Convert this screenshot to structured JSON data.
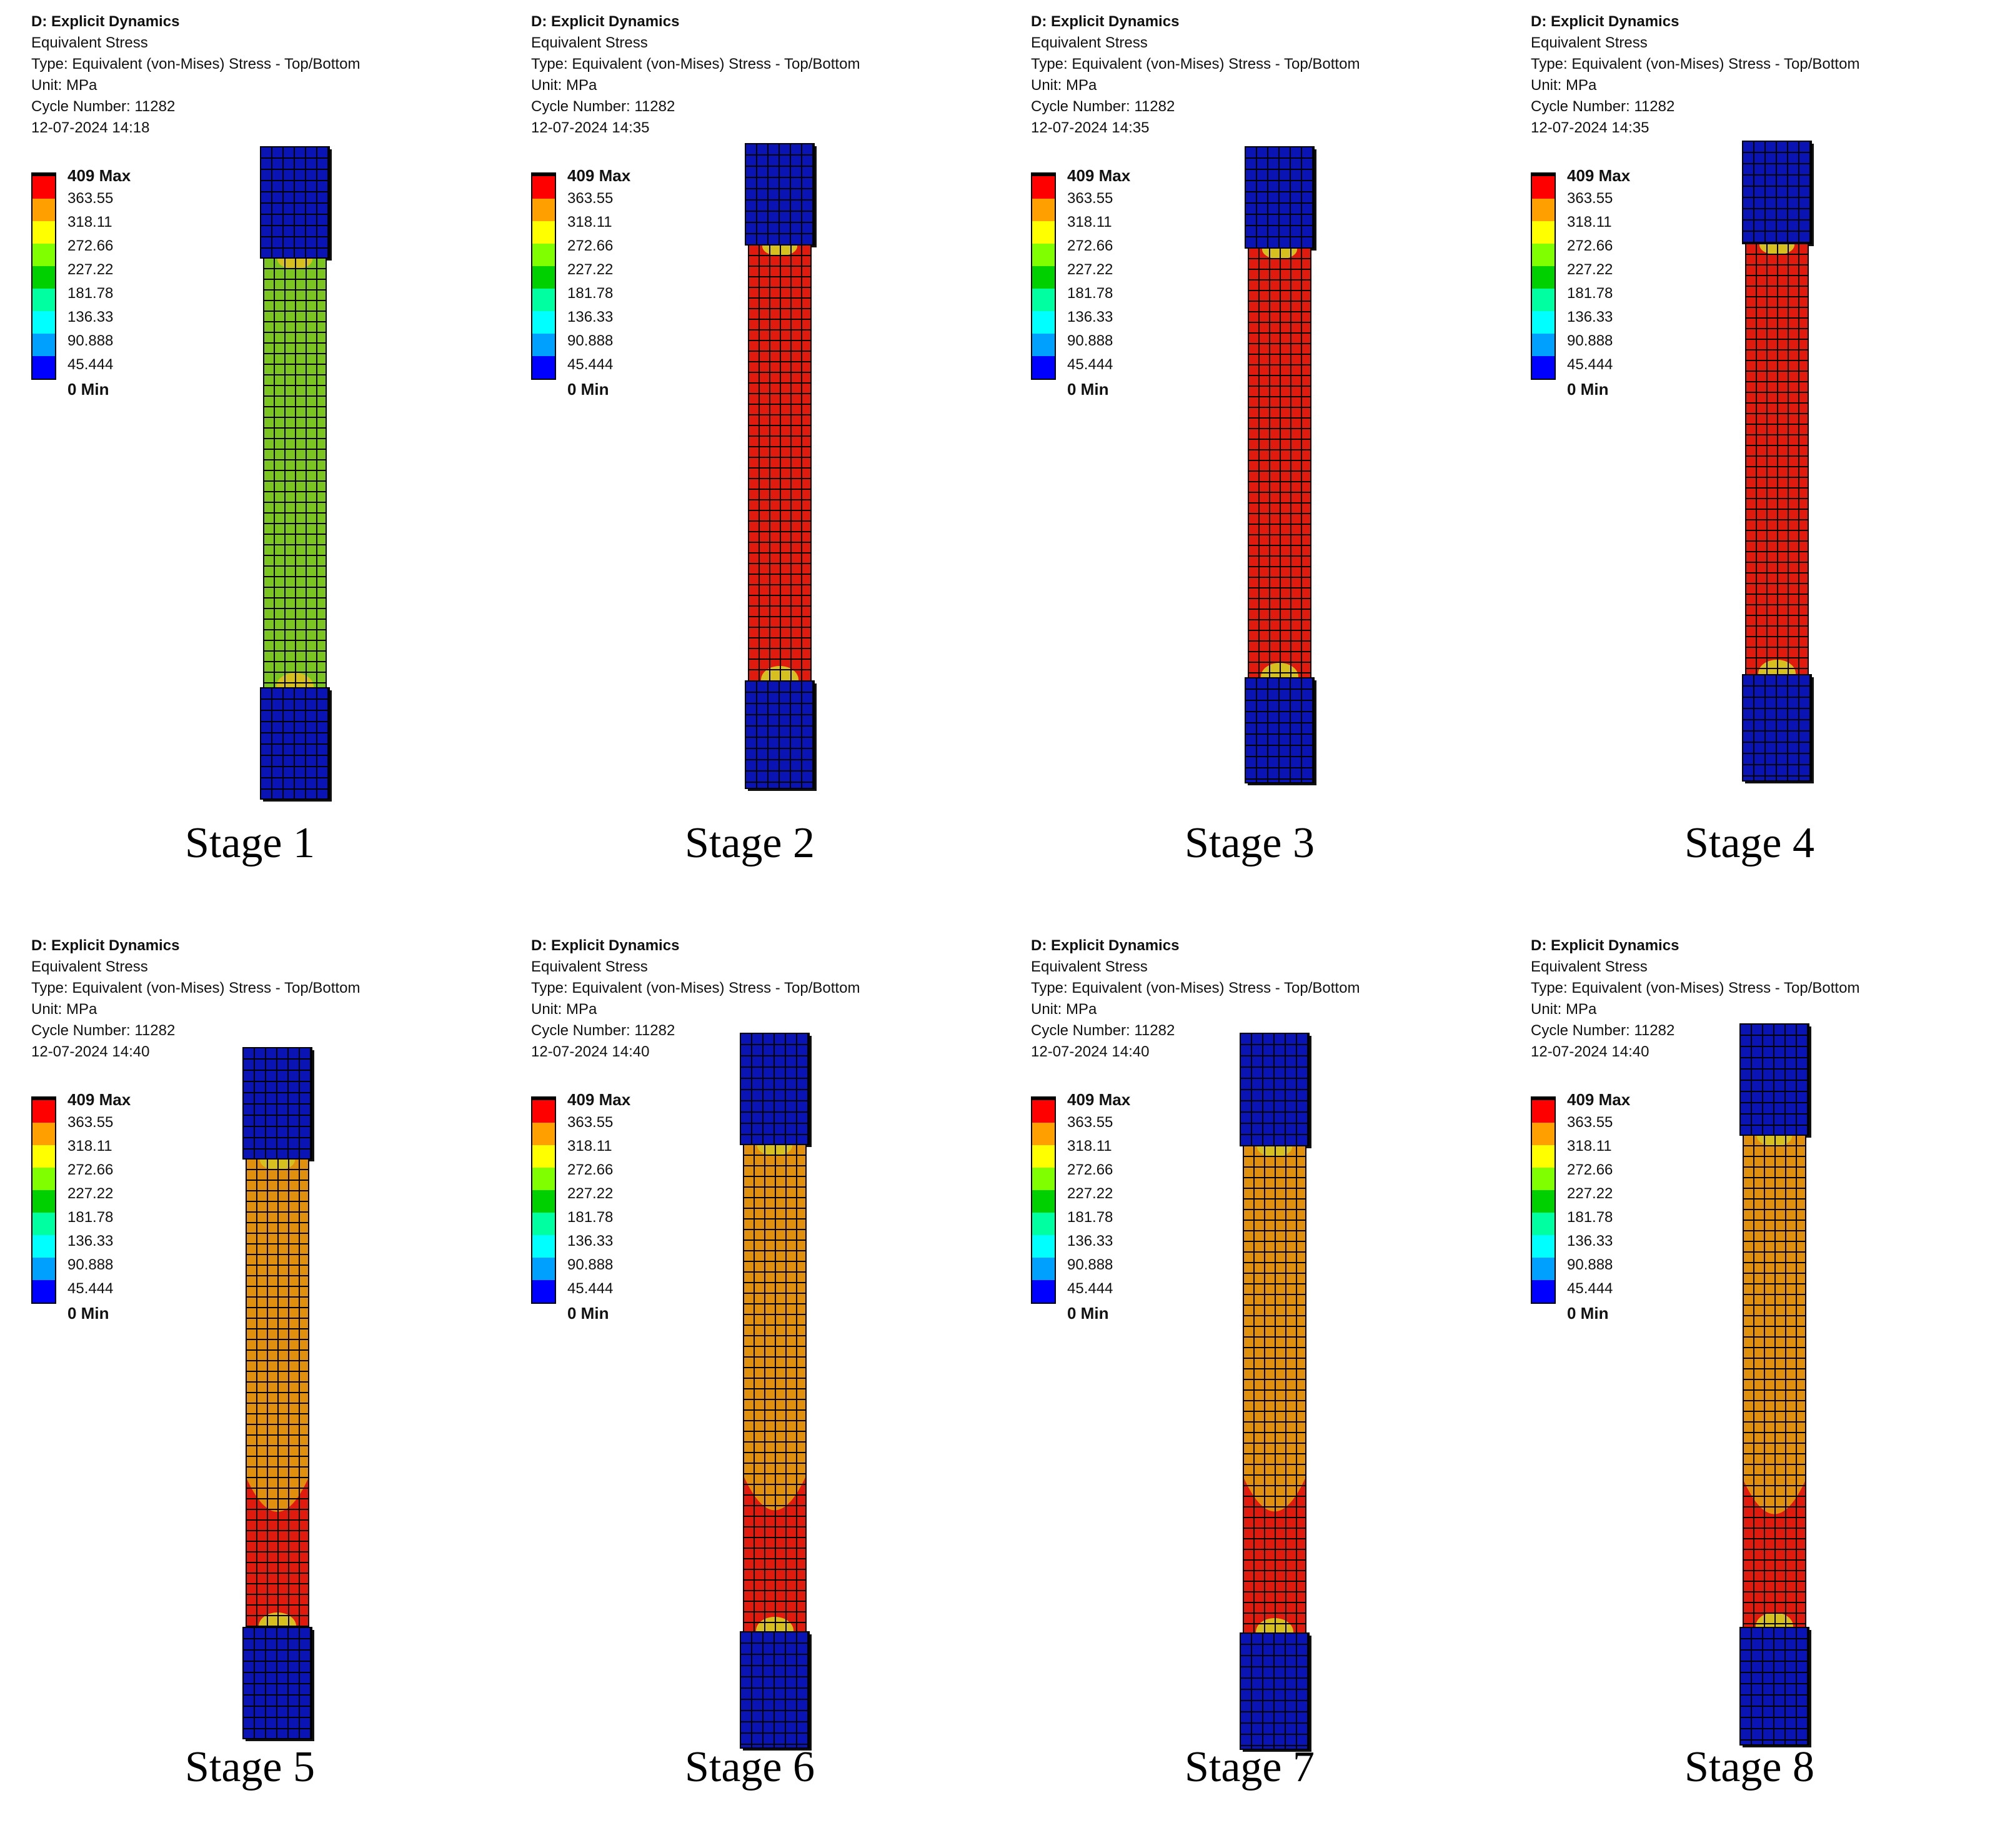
{
  "colors": {
    "legend": [
      "#ff0000",
      "#ffa000",
      "#ffff00",
      "#80ff00",
      "#00d000",
      "#00ffa0",
      "#00ffff",
      "#00a0ff",
      "#0000ff"
    ],
    "grip": "#0a14b4",
    "zone": {
      "green": "#7ac520",
      "red": "#e01b0e",
      "orange": "#e0900c",
      "yellow": "#d6c020"
    }
  },
  "legend_labels": [
    "409 Max",
    "363.55",
    "318.11",
    "272.66",
    "227.22",
    "181.78",
    "136.33",
    "90.888",
    "45.444",
    "0 Min"
  ],
  "stages": [
    {
      "title": "D: Explicit Dynamics",
      "result": "Equivalent Stress",
      "type": "Type: Equivalent (von-Mises) Stress - Top/Bottom",
      "unit": "Unit: MPa",
      "cycle": "Cycle Number: 11282",
      "date": "12-07-2024 14:18",
      "caption": "Stage 1",
      "gauge": "green",
      "neck": "none",
      "neck_start": 1.0
    },
    {
      "title": "D: Explicit Dynamics",
      "result": "Equivalent Stress",
      "type": "Type: Equivalent (von-Mises) Stress - Top/Bottom",
      "unit": "Unit: MPa",
      "cycle": "Cycle Number: 11282",
      "date": "12-07-2024 14:35",
      "caption": "Stage 2",
      "gauge": "red",
      "neck": "none",
      "neck_start": 1.0
    },
    {
      "title": "D: Explicit Dynamics",
      "result": "Equivalent Stress",
      "type": "Type: Equivalent (von-Mises) Stress - Top/Bottom",
      "unit": "Unit: MPa",
      "cycle": "Cycle Number: 11282",
      "date": "12-07-2024 14:35",
      "caption": "Stage 3",
      "gauge": "red",
      "neck": "none",
      "neck_start": 1.0
    },
    {
      "title": "D: Explicit Dynamics",
      "result": "Equivalent Stress",
      "type": "Type: Equivalent (von-Mises) Stress - Top/Bottom",
      "unit": "Unit: MPa",
      "cycle": "Cycle Number: 11282",
      "date": "12-07-2024 14:35",
      "caption": "Stage 4",
      "gauge": "red",
      "neck": "none",
      "neck_start": 1.0
    },
    {
      "title": "D: Explicit Dynamics",
      "result": "Equivalent Stress",
      "type": "Type: Equivalent (von-Mises) Stress - Top/Bottom",
      "unit": "Unit: MPa",
      "cycle": "Cycle Number: 11282",
      "date": "12-07-2024 14:40",
      "caption": "Stage 5",
      "gauge": "orange",
      "neck": "red",
      "neck_start": 0.68
    },
    {
      "title": "D: Explicit Dynamics",
      "result": "Equivalent Stress",
      "type": "Type: Equivalent (von-Mises) Stress - Top/Bottom",
      "unit": "Unit: MPa",
      "cycle": "Cycle Number: 11282",
      "date": "12-07-2024 14:40",
      "caption": "Stage 6",
      "gauge": "orange",
      "neck": "red",
      "neck_start": 0.68
    },
    {
      "title": "D: Explicit Dynamics",
      "result": "Equivalent Stress",
      "type": "Type: Equivalent (von-Mises) Stress - Top/Bottom",
      "unit": "Unit: MPa",
      "cycle": "Cycle Number: 11282",
      "date": "12-07-2024 14:40",
      "caption": "Stage 7",
      "gauge": "orange",
      "neck": "red",
      "neck_start": 0.68
    },
    {
      "title": "D: Explicit Dynamics",
      "result": "Equivalent Stress",
      "type": "Type: Equivalent (von-Mises) Stress - Top/Bottom",
      "unit": "Unit: MPa",
      "cycle": "Cycle Number: 11282",
      "date": "12-07-2024 14:40",
      "caption": "Stage 8",
      "gauge": "orange",
      "neck": "red",
      "neck_start": 0.7
    }
  ]
}
